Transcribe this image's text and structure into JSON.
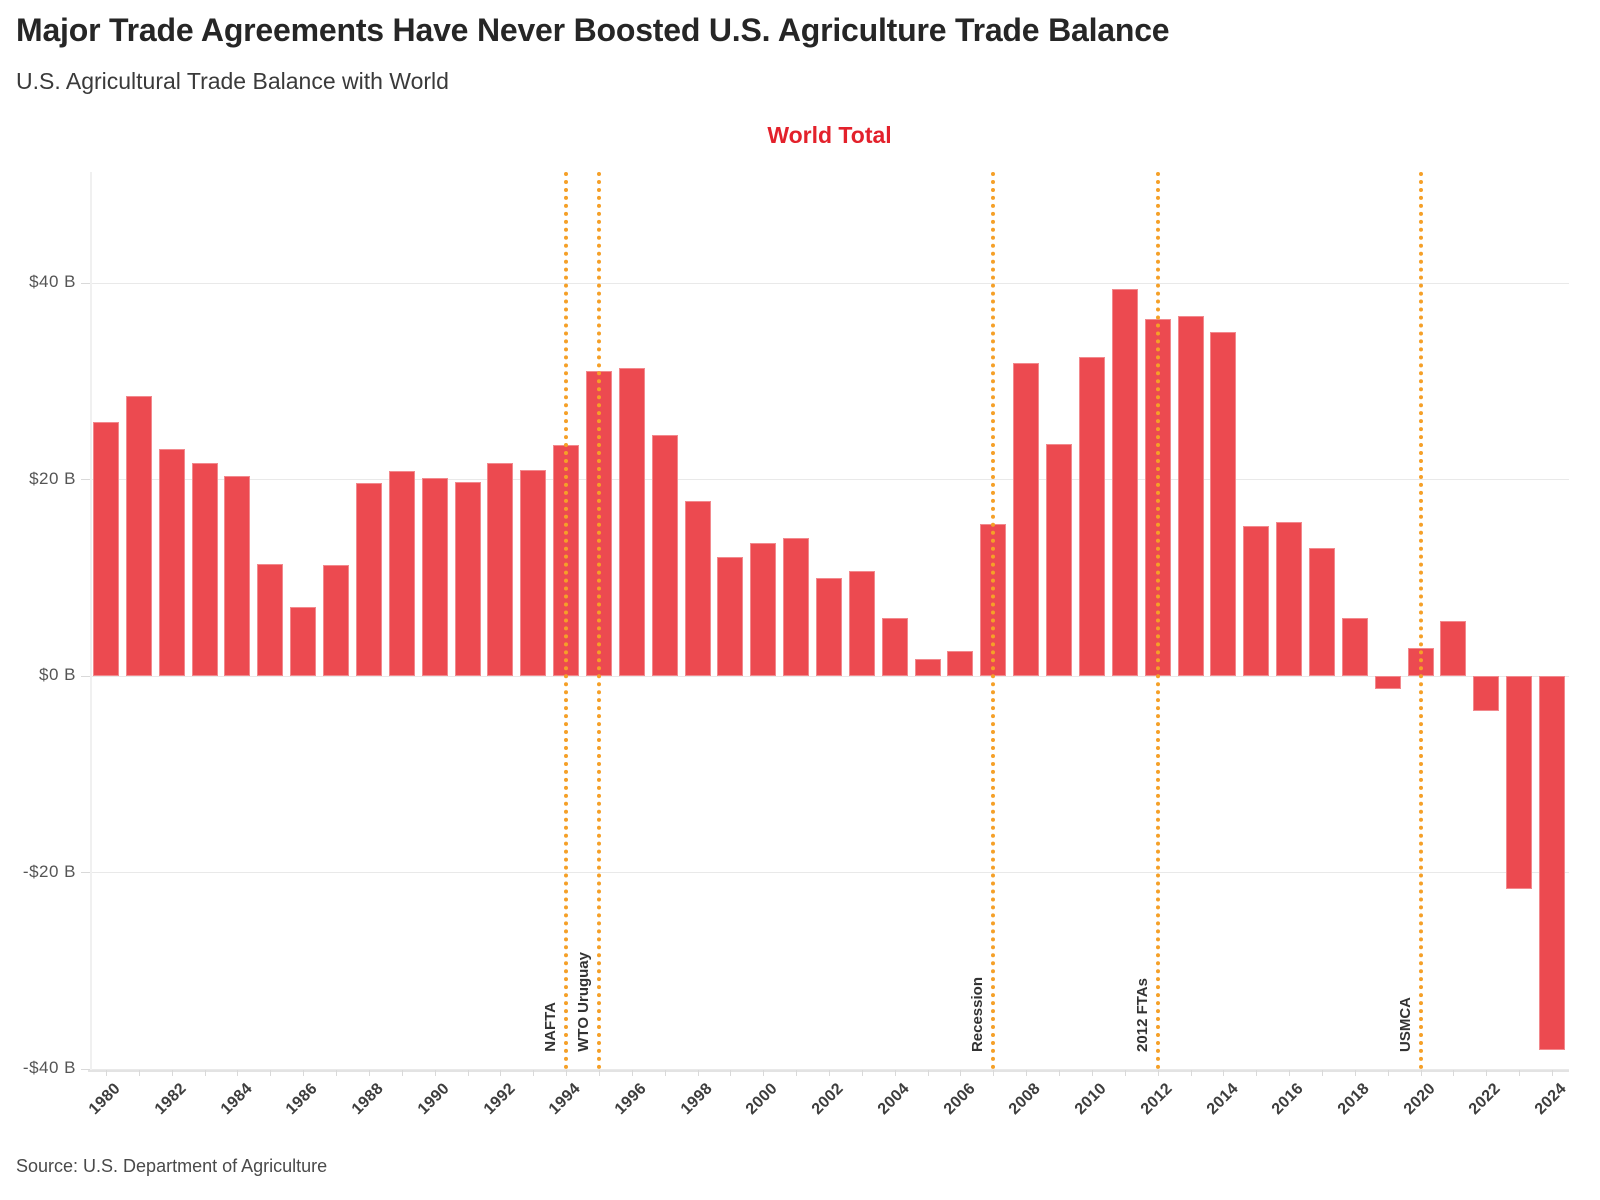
{
  "header": {
    "title": "Major Trade Agreements Have Never Boosted U.S. Agriculture Trade Balance",
    "subtitle": "U.S. Agricultural Trade Balance with World",
    "legend_label": "World Total"
  },
  "footer": {
    "source": "Source: U.S. Department of Agriculture"
  },
  "chart_data": {
    "type": "bar",
    "title": "Major Trade Agreements Have Never Boosted U.S. Agriculture Trade Balance",
    "subtitle": "U.S. Agricultural Trade Balance with World",
    "series_label": "World Total",
    "unit": "USD billions",
    "categories": [
      1980,
      1981,
      1982,
      1983,
      1984,
      1985,
      1986,
      1987,
      1988,
      1989,
      1990,
      1991,
      1992,
      1993,
      1994,
      1995,
      1996,
      1997,
      1998,
      1999,
      2000,
      2001,
      2002,
      2003,
      2004,
      2005,
      2006,
      2007,
      2008,
      2009,
      2010,
      2011,
      2012,
      2013,
      2014,
      2015,
      2016,
      2017,
      2018,
      2019,
      2020,
      2021,
      2022,
      2023,
      2024
    ],
    "values": [
      25.9,
      28.5,
      23.1,
      21.7,
      20.4,
      11.4,
      7.0,
      11.3,
      19.6,
      20.9,
      20.2,
      19.7,
      21.7,
      21.0,
      23.5,
      31.0,
      31.3,
      24.5,
      17.8,
      12.1,
      13.5,
      14.0,
      10.0,
      10.7,
      5.9,
      1.7,
      2.5,
      15.5,
      31.9,
      23.6,
      32.5,
      39.4,
      36.3,
      36.6,
      35.0,
      15.3,
      15.7,
      13.0,
      5.9,
      -1.3,
      2.9,
      5.6,
      -3.6,
      -21.7,
      -38.1
    ],
    "ylim": [
      -40.1,
      51.3
    ],
    "y_ticks": [
      {
        "value": 40,
        "label": "$40 B"
      },
      {
        "value": 20,
        "label": "$20 B"
      },
      {
        "value": 0,
        "label": "$0 B"
      },
      {
        "value": -20,
        "label": "-$20 B"
      },
      {
        "value": -40,
        "label": "-$40 B"
      }
    ],
    "x_label_every": 2,
    "grid": true,
    "legend_position": "top-center",
    "colors": {
      "bar": "#EC4A50",
      "legend_text": "#E3212B",
      "annotation_line": "#F5A028",
      "annotation_text": "#333333",
      "gridline": "#E9E9E9"
    },
    "annotations": [
      {
        "label": "NAFTA",
        "year": 1994
      },
      {
        "label": "WTO Uruguay",
        "year": 1995
      },
      {
        "label": "Recession",
        "year": 2007
      },
      {
        "label": "2012 FTAs",
        "year": 2012
      },
      {
        "label": "USMCA",
        "year": 2020
      }
    ]
  }
}
